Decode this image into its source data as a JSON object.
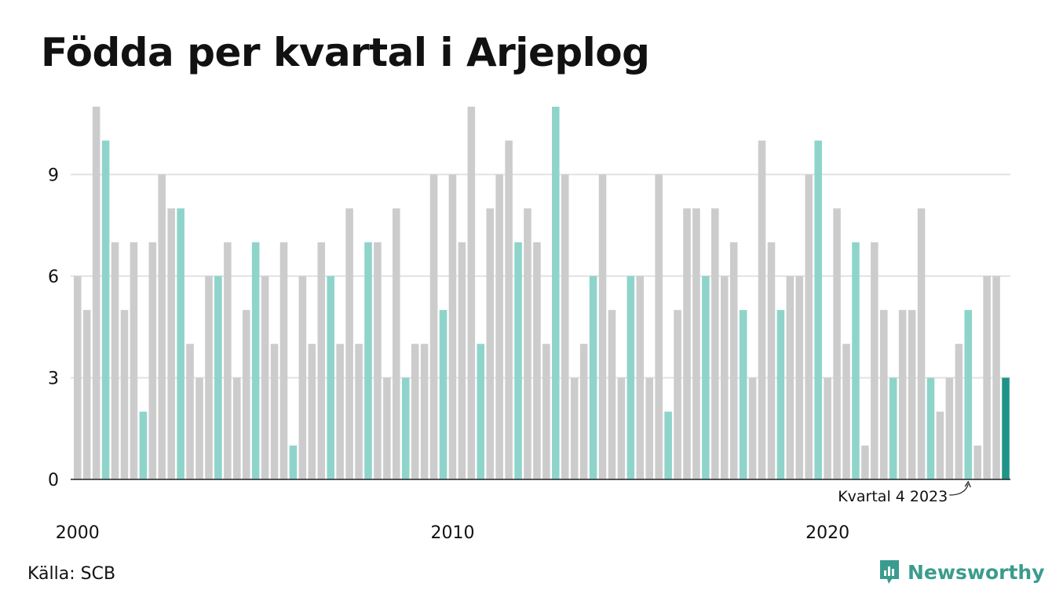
{
  "chart_data": {
    "type": "bar",
    "title": "Födda per kvartal i Arjeplog",
    "ylim": [
      0,
      11
    ],
    "yticks": [
      0,
      3,
      6,
      9
    ],
    "x_tick_labels": [
      {
        "label": "2000",
        "index": 0
      },
      {
        "label": "2010",
        "index": 40
      },
      {
        "label": "2020",
        "index": 80
      }
    ],
    "grid": true,
    "values": [
      6,
      5,
      11,
      10,
      7,
      5,
      7,
      2,
      7,
      9,
      8,
      8,
      4,
      3,
      6,
      6,
      7,
      3,
      5,
      7,
      6,
      4,
      7,
      1,
      6,
      4,
      7,
      6,
      4,
      8,
      4,
      7,
      7,
      3,
      8,
      3,
      4,
      4,
      9,
      5,
      9,
      7,
      11,
      4,
      8,
      9,
      10,
      7,
      8,
      7,
      4,
      11,
      9,
      3,
      4,
      6,
      9,
      5,
      3,
      6,
      6,
      3,
      9,
      2,
      5,
      8,
      8,
      6,
      8,
      6,
      7,
      5,
      3,
      10,
      7,
      5,
      6,
      6,
      9,
      10,
      3,
      8,
      4,
      7,
      1,
      7,
      5,
      3,
      5,
      5,
      8,
      3,
      2,
      3,
      4,
      5,
      1,
      6,
      6,
      3
    ],
    "highlight_quarter": 4,
    "colors": {
      "other_quarters": "#cccccc",
      "highlight_quarter": "#8ed4cb",
      "latest": "#1f9387",
      "grid": "#e2e2e2",
      "axis": "#222222"
    },
    "annotation": {
      "text": "Kvartal 4 2023",
      "index": 95
    }
  },
  "footer": {
    "source": "Källa: SCB",
    "brand": "Newsworthy"
  }
}
